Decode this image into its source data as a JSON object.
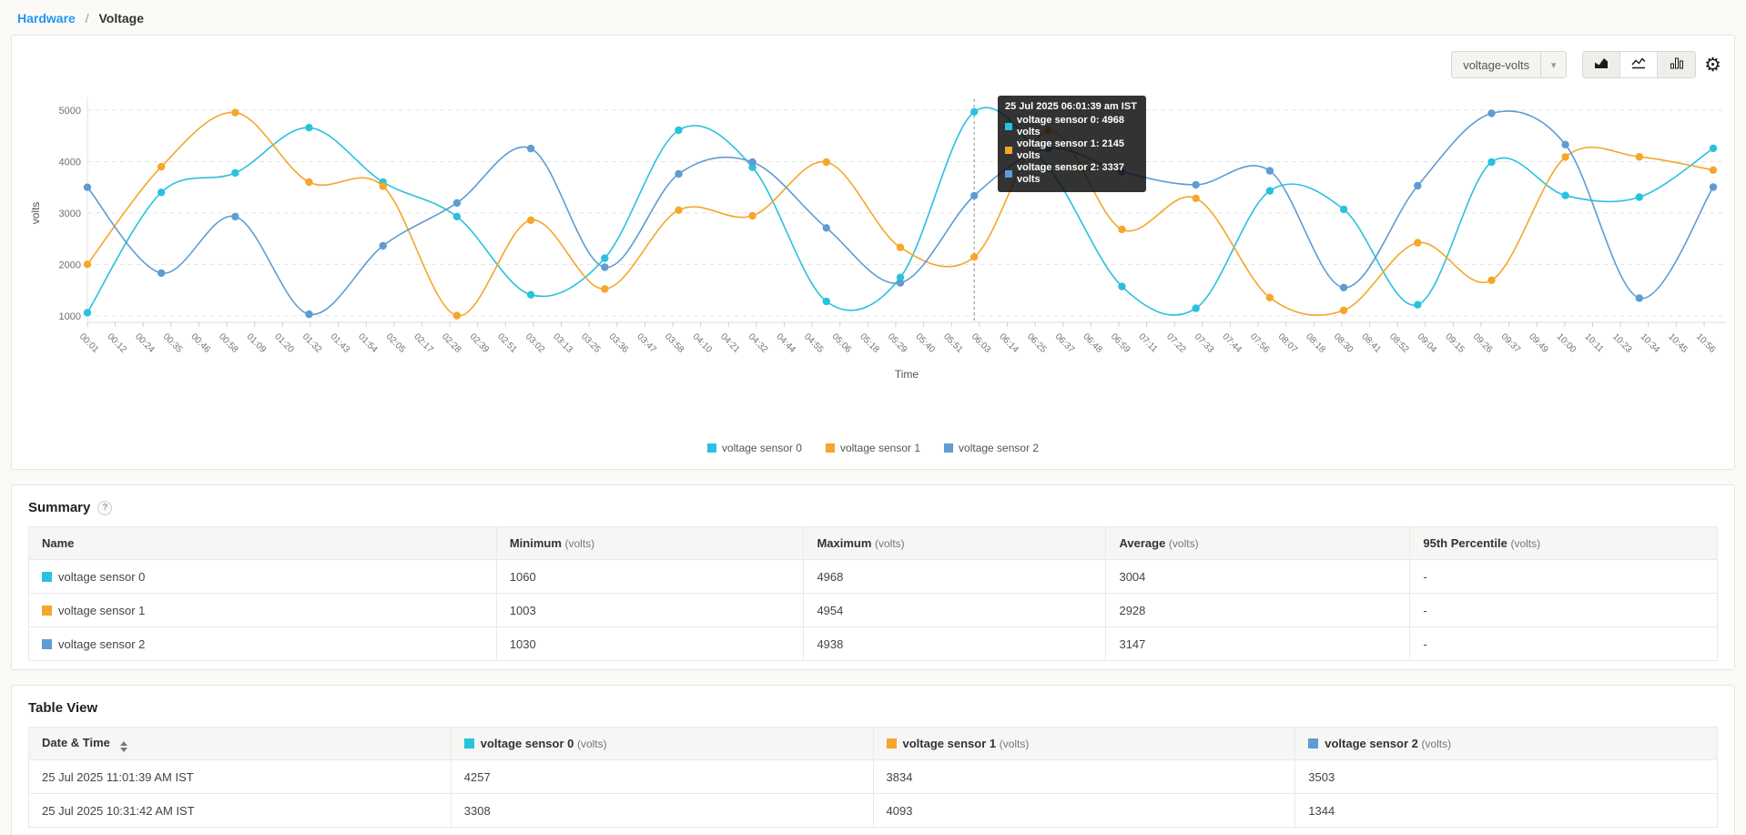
{
  "breadcrumb": {
    "link": "Hardware",
    "separator": "/",
    "current": "Voltage"
  },
  "colors": {
    "sensor0": "#2ac1de",
    "sensor1": "#f5a62b",
    "sensor2": "#5e9cd3",
    "link_blue": "#2196f3",
    "grid": "#e3e3e3",
    "axis_text": "#737373",
    "tooltip_bg": "#1a1a1a"
  },
  "toolbar": {
    "metric_dropdown_value": "voltage-volts",
    "chart_type_buttons": [
      "area-chart",
      "line-chart",
      "bar-chart"
    ],
    "active_chart_type": "line-chart",
    "gear_icon": "settings"
  },
  "chart_data": {
    "type": "line",
    "title": "",
    "xlabel": "Time",
    "ylabel": "volts",
    "ylim": [
      1000,
      5000
    ],
    "y_ticks": [
      1000,
      2000,
      3000,
      4000,
      5000
    ],
    "grid": "dashed-horizontal",
    "legend_position": "bottom-center",
    "x_tick_labels": [
      "00:01",
      "00:12",
      "00:24",
      "00:35",
      "00:46",
      "00:58",
      "01:09",
      "01:20",
      "01:32",
      "01:43",
      "01:54",
      "02:05",
      "02:17",
      "02:28",
      "02:39",
      "02:51",
      "03:02",
      "03:13",
      "03:25",
      "03:36",
      "03:47",
      "03:58",
      "04:10",
      "04:21",
      "04:32",
      "04:44",
      "04:55",
      "05:06",
      "05:18",
      "05:29",
      "05:40",
      "05:51",
      "06:03",
      "06:14",
      "06:25",
      "06:37",
      "06:48",
      "06:59",
      "07:11",
      "07:22",
      "07:33",
      "07:44",
      "07:56",
      "08:07",
      "08:18",
      "08:30",
      "08:41",
      "08:52",
      "09:04",
      "09:15",
      "09:26",
      "09:37",
      "09:49",
      "10:00",
      "10:11",
      "10:23",
      "10:34",
      "10:45",
      "10:56"
    ],
    "highlight_index": 12,
    "series": [
      {
        "name": "voltage sensor 0",
        "color": "#2ac1de",
        "values": [
          1060,
          3400,
          3780,
          4660,
          3600,
          2930,
          1410,
          2120,
          4610,
          3890,
          1280,
          1745,
          4968,
          3890,
          1570,
          1145,
          3430,
          3070,
          1215,
          3990,
          3340,
          3308,
          4257
        ]
      },
      {
        "name": "voltage sensor 1",
        "color": "#f5a62b",
        "values": [
          2000,
          3900,
          4954,
          3600,
          3520,
          1003,
          2860,
          1520,
          3055,
          2945,
          3990,
          2330,
          2145,
          4600,
          2680,
          3285,
          1355,
          1105,
          2420,
          1690,
          4090,
          4093,
          3834
        ]
      },
      {
        "name": "voltage sensor 2",
        "color": "#5e9cd3",
        "values": [
          3500,
          1830,
          2930,
          1030,
          2360,
          3195,
          4255,
          1945,
          3760,
          3990,
          2710,
          1640,
          3337,
          4250,
          3800,
          3550,
          3820,
          1550,
          3530,
          4938,
          4330,
          1344,
          3503
        ]
      }
    ]
  },
  "tooltip": {
    "title": "25 Jul 2025 06:01:39 am IST",
    "rows": [
      {
        "label": "voltage sensor 0",
        "value": "4968 volts",
        "color": "#2ac1de"
      },
      {
        "label": "voltage sensor 1",
        "value": "2145 volts",
        "color": "#f5a62b"
      },
      {
        "label": "voltage sensor 2",
        "value": "3337 volts",
        "color": "#5e9cd3"
      }
    ]
  },
  "summary": {
    "title": "Summary",
    "help_icon": "?",
    "columns": [
      {
        "label": "Name",
        "unit": ""
      },
      {
        "label": "Minimum",
        "unit": "(volts)"
      },
      {
        "label": "Maximum",
        "unit": "(volts)"
      },
      {
        "label": "Average",
        "unit": "(volts)"
      },
      {
        "label": "95th Percentile",
        "unit": "(volts)"
      }
    ],
    "rows": [
      {
        "name": "voltage sensor 0",
        "color": "#2ac1de",
        "min": "1060",
        "max": "4968",
        "avg": "3004",
        "p95": "-"
      },
      {
        "name": "voltage sensor 1",
        "color": "#f5a62b",
        "min": "1003",
        "max": "4954",
        "avg": "2928",
        "p95": "-"
      },
      {
        "name": "voltage sensor 2",
        "color": "#5e9cd3",
        "min": "1030",
        "max": "4938",
        "avg": "3147",
        "p95": "-"
      }
    ]
  },
  "table_view": {
    "title": "Table View",
    "columns": [
      {
        "label": "Date & Time",
        "unit": "",
        "sortable": true,
        "color": ""
      },
      {
        "label": "voltage sensor 0",
        "unit": "(volts)",
        "sortable": false,
        "color": "#2ac1de"
      },
      {
        "label": "voltage sensor 1",
        "unit": "(volts)",
        "sortable": false,
        "color": "#f5a62b"
      },
      {
        "label": "voltage sensor 2",
        "unit": "(volts)",
        "sortable": false,
        "color": "#5e9cd3"
      }
    ],
    "rows": [
      [
        "25 Jul 2025 11:01:39 AM IST",
        "4257",
        "3834",
        "3503"
      ],
      [
        "25 Jul 2025 10:31:42 AM IST",
        "3308",
        "4093",
        "1344"
      ]
    ]
  }
}
